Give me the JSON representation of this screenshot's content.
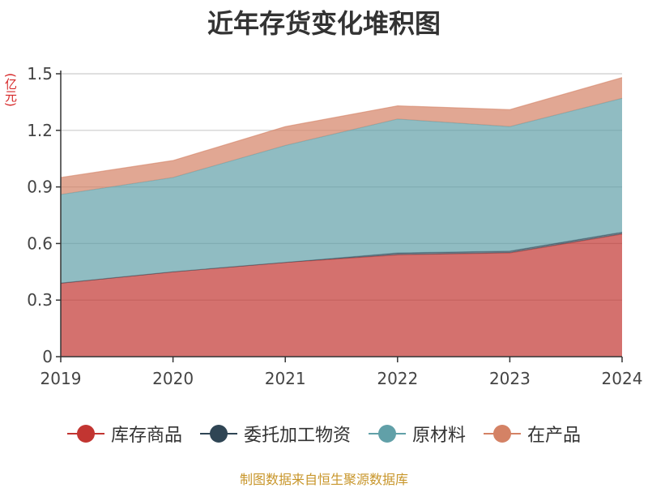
{
  "chart_data": {
    "type": "area",
    "stacked": true,
    "title": "近年存货变化堆积图",
    "unit_label": "(亿元)",
    "categories": [
      "2019",
      "2020",
      "2021",
      "2022",
      "2023",
      "2024"
    ],
    "ylim": [
      0,
      1.5
    ],
    "yticks": [
      "0",
      "0.3",
      "0.6",
      "0.9",
      "1.2",
      "1.5"
    ],
    "grid": true,
    "legend_position": "bottom",
    "series": [
      {
        "name": "库存商品",
        "color": "#c23531",
        "values": [
          0.39,
          0.45,
          0.5,
          0.54,
          0.55,
          0.65
        ]
      },
      {
        "name": "委托加工物资",
        "color": "#2f4554",
        "values": [
          0.0,
          0.0,
          0.0,
          0.01,
          0.01,
          0.01
        ]
      },
      {
        "name": "原材料",
        "color": "#61a0a8",
        "values": [
          0.47,
          0.5,
          0.62,
          0.71,
          0.66,
          0.71
        ]
      },
      {
        "name": "在产品",
        "color": "#d48265",
        "values": [
          0.09,
          0.09,
          0.1,
          0.07,
          0.09,
          0.11
        ]
      }
    ]
  },
  "source": "制图数据来自恒生聚源数据库"
}
